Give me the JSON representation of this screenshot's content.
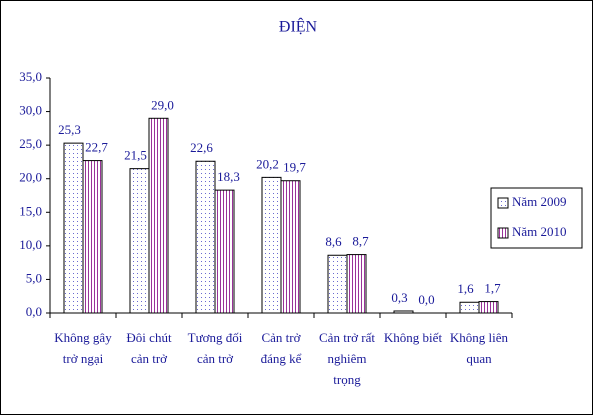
{
  "chart_data": {
    "type": "bar",
    "title": "ĐIỆN",
    "categories": [
      "Không gây trở ngại",
      "Đôi chút cản trở",
      "Tương đối cản trở",
      "Cản trở đáng kể",
      "Cản trở rất nghiêm trọng",
      "Không biết",
      "Không liên quan"
    ],
    "series": [
      {
        "name": "Năm 2009",
        "color": "#6a6ad0",
        "values": [
          25.3,
          21.5,
          22.6,
          20.2,
          8.6,
          0.3,
          1.6
        ],
        "value_labels": [
          "25,3",
          "21,5",
          "22,6",
          "20,2",
          "8,6",
          "0,3",
          "1,6"
        ]
      },
      {
        "name": "Năm 2010",
        "color": "#993399",
        "values": [
          22.7,
          29.0,
          18.3,
          19.7,
          8.7,
          0.0,
          1.7
        ],
        "value_labels": [
          "22,7",
          "29,0",
          "18,3",
          "19,7",
          "8,7",
          "0,0",
          "1,7"
        ]
      }
    ],
    "ylim": [
      0,
      35
    ],
    "yticks": [
      {
        "value": 0,
        "label": "0,0"
      },
      {
        "value": 5,
        "label": "5,0"
      },
      {
        "value": 10,
        "label": "10,0"
      },
      {
        "value": 15,
        "label": "15,0"
      },
      {
        "value": 20,
        "label": "20,0"
      },
      {
        "value": 25,
        "label": "25,0"
      },
      {
        "value": 30,
        "label": "30,0"
      },
      {
        "value": 35,
        "label": "35,0"
      }
    ],
    "grid": false,
    "legend": "right"
  }
}
